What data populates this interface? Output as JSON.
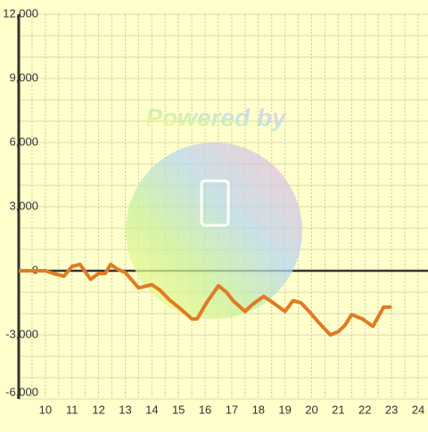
{
  "chart_data": {
    "type": "line",
    "watermark": "Powered by",
    "x": [
      9,
      10,
      10.3,
      10.7,
      11,
      11.3,
      11.7,
      12,
      12.25,
      12.45,
      12.7,
      13,
      13.5,
      14,
      14.3,
      14.65,
      15,
      15.5,
      15.7,
      16.05,
      16.5,
      16.8,
      17.05,
      17.5,
      17.8,
      18.2,
      18.5,
      19,
      19.3,
      19.6,
      19.9,
      20.25,
      20.7,
      21,
      21.25,
      21.5,
      21.9,
      22.3,
      22.7,
      23
    ],
    "values": [
      0,
      0,
      -125,
      -250,
      200,
      300,
      -400,
      -125,
      -125,
      300,
      80,
      -80,
      -800,
      -650,
      -900,
      -1350,
      -1700,
      -2250,
      -2250,
      -1500,
      -700,
      -1000,
      -1400,
      -1900,
      -1550,
      -1200,
      -1450,
      -1900,
      -1400,
      -1500,
      -1900,
      -2400,
      -3000,
      -2850,
      -2550,
      -2050,
      -2250,
      -2600,
      -1700,
      -1700
    ],
    "color": "#e07b24",
    "xlim": [
      9,
      24
    ],
    "ylim": [
      -6000,
      12000
    ],
    "xticks": [
      10,
      11,
      12,
      13,
      14,
      15,
      16,
      17,
      18,
      19,
      20,
      21,
      22,
      23,
      24
    ],
    "yticks": [
      {
        "value": -6000,
        "label": "-6,000"
      },
      {
        "value": -3000,
        "label": "-3,000"
      },
      0,
      {
        "value": 3000,
        "label": "3,000"
      },
      {
        "value": 6000,
        "label": "6,000"
      },
      {
        "value": 9000,
        "label": "9,000"
      },
      {
        "value": 12000,
        "label": "12,000"
      }
    ],
    "ygrid": [
      -5000,
      -4000,
      -2000,
      -1000,
      1000,
      2000,
      4000,
      5000,
      7000,
      8000,
      10000,
      11000
    ],
    "xgrid": [
      9.5,
      10,
      10.5,
      11,
      11.5,
      12,
      12.5,
      13,
      13.5,
      14,
      14.5,
      15,
      15.5,
      16,
      16.5,
      17,
      17.5,
      18,
      18.5,
      19,
      19.5,
      20,
      20.5,
      21,
      21.5,
      22,
      22.5,
      23,
      23.5,
      24
    ],
    "grid": true
  }
}
